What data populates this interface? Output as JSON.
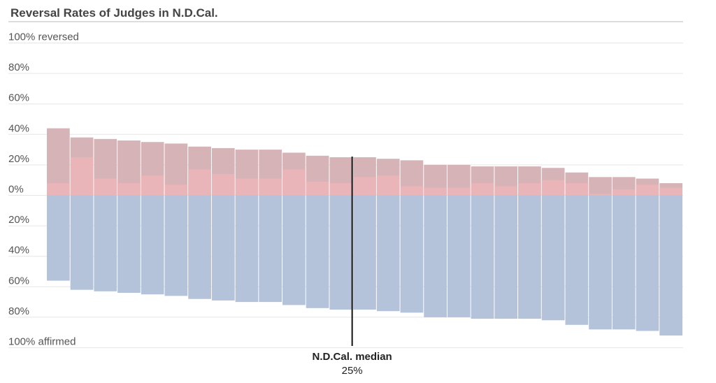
{
  "chart_data": {
    "type": "bar",
    "title": "Reversal Rates of Judges in N.D.Cal.",
    "y_ticks_reversed": [
      "100% reversed",
      "80%",
      "60%",
      "40%",
      "20%",
      "0%"
    ],
    "y_ticks_affirmed": [
      "20%",
      "40%",
      "60%",
      "80%",
      "100% affirmed"
    ],
    "ylim": [
      -100,
      100
    ],
    "grid": true,
    "series": [
      {
        "values": [
          44,
          38,
          37,
          36,
          35,
          34,
          32,
          31,
          30,
          30,
          28,
          26,
          25,
          25,
          24,
          23,
          20,
          20,
          19,
          19,
          19,
          18,
          15,
          12,
          12,
          11,
          8
        ]
      },
      {
        "values": [
          8,
          25,
          11,
          8,
          13,
          7,
          17,
          14,
          11,
          11,
          17,
          9,
          8,
          12,
          13,
          6,
          5,
          5,
          8,
          6,
          8,
          10,
          8,
          1,
          4,
          7,
          5
        ]
      },
      {
        "values": [
          -56,
          -62,
          -63,
          -64,
          -65,
          -66,
          -68,
          -69,
          -70,
          -70,
          -72,
          -74,
          -75,
          -75,
          -76,
          -77,
          -80,
          -80,
          -81,
          -81,
          -81,
          -82,
          -85,
          -88,
          -88,
          -89,
          -92
        ]
      }
    ],
    "annotation": {
      "label": "N.D.Cal. median",
      "value_label": "25%",
      "at_bar": 13
    },
    "colors": {
      "reversed": "#d6b3b7",
      "reversed_light": "#eab5b9",
      "affirmed": "#b4c2da",
      "median_line": "#111111"
    }
  }
}
